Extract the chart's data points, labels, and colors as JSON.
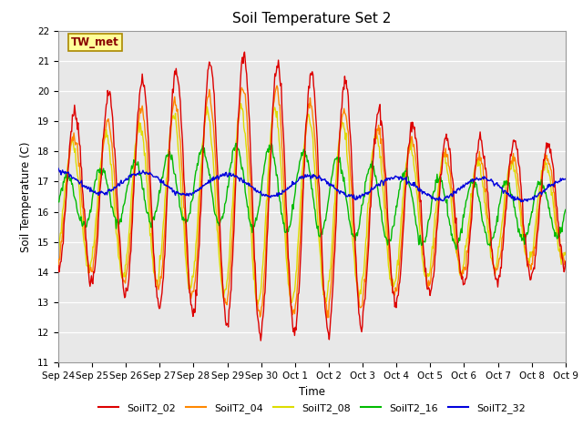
{
  "title": "Soil Temperature Set 2",
  "ylabel": "Soil Temperature (C)",
  "xlabel": "Time",
  "ylim": [
    11.0,
    22.0
  ],
  "yticks": [
    11.0,
    12.0,
    13.0,
    14.0,
    15.0,
    16.0,
    17.0,
    18.0,
    19.0,
    20.0,
    21.0,
    22.0
  ],
  "bg_color": "#e8e8e8",
  "annotation_text": "TW_met",
  "annotation_bg": "#ffff99",
  "annotation_border": "#aa8800",
  "annotation_text_color": "#880000",
  "series_colors": {
    "SoilT2_02": "#dd0000",
    "SoilT2_04": "#ff8800",
    "SoilT2_08": "#dddd00",
    "SoilT2_16": "#00bb00",
    "SoilT2_32": "#0000dd"
  },
  "line_width": 1.0,
  "figsize": [
    6.4,
    4.8
  ],
  "dpi": 100,
  "n_points": 720,
  "total_days": 15,
  "xtick_positions": [
    0,
    1,
    2,
    3,
    4,
    5,
    6,
    7,
    8,
    9,
    10,
    11,
    12,
    13,
    14,
    15
  ],
  "xtick_labels": [
    "Sep 24",
    "Sep 25",
    "Sep 26",
    "Sep 27",
    "Sep 28",
    "Sep 29",
    "Sep 30",
    "Oct 1",
    "Oct 2",
    "Oct 3",
    "Oct 4",
    "Oct 5",
    "Oct 6",
    "Oct 7",
    "Oct 8",
    "Oct 9"
  ]
}
